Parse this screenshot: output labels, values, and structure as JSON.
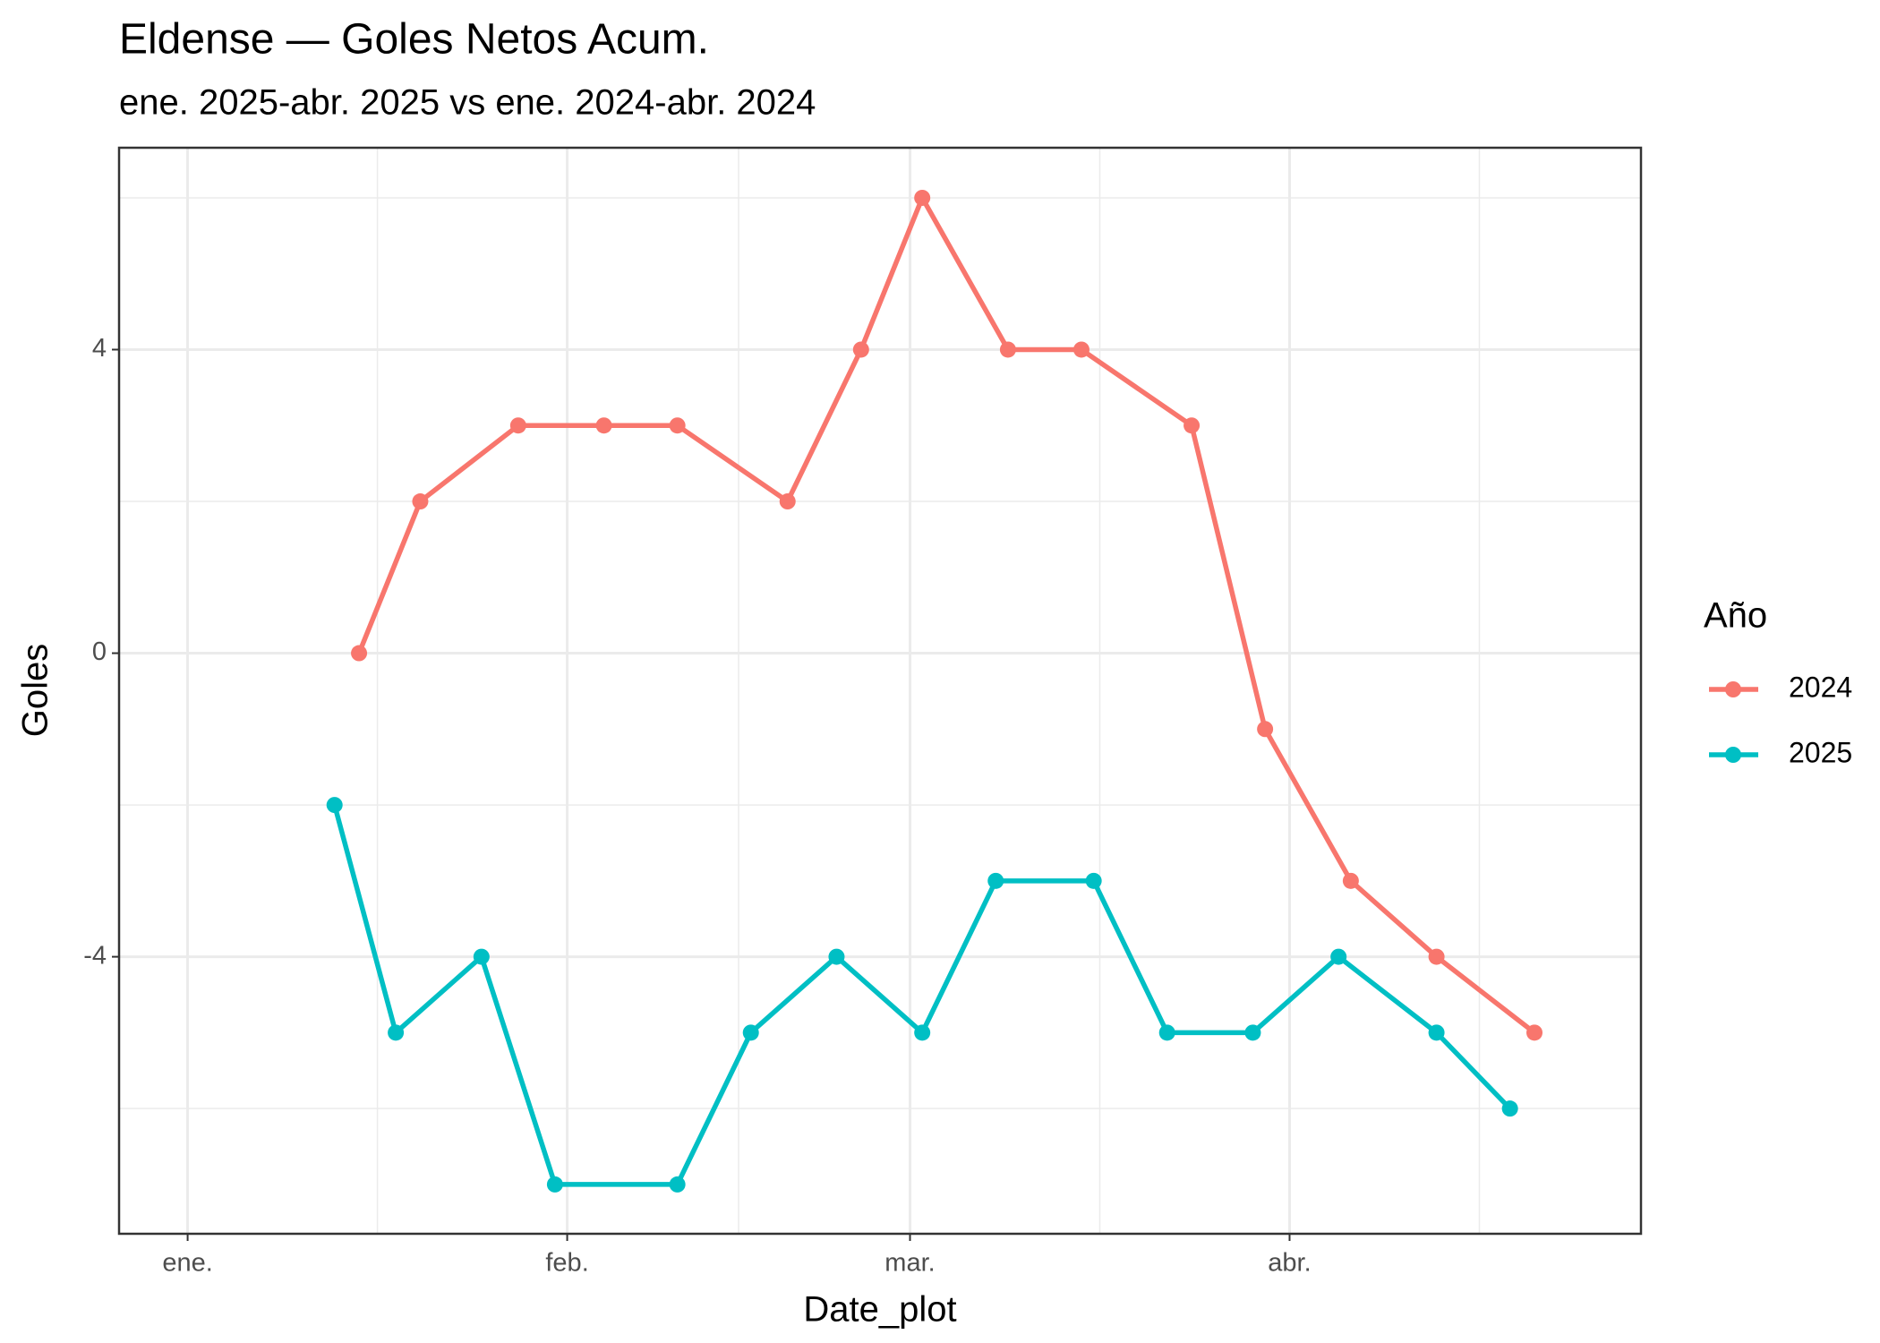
{
  "chart_data": {
    "type": "line",
    "title": "Eldense — Goles Netos Acum.",
    "subtitle": "ene. 2025-abr. 2025 vs ene. 2024-abr. 2024",
    "x_label": "Date_plot",
    "y_label": "Goles",
    "legend_title": "Año",
    "legend_position": "right",
    "xlim": [
      -5.6,
      118.7
    ],
    "ylim": [
      -7.65,
      6.66
    ],
    "xticks": [
      {
        "value": 0,
        "label": "ene."
      },
      {
        "value": 31,
        "label": "feb."
      },
      {
        "value": 59,
        "label": "mar."
      },
      {
        "value": 90,
        "label": "abr."
      }
    ],
    "xminor": [
      15.5,
      45,
      74.5,
      105.5
    ],
    "yticks": [
      -4,
      0,
      4
    ],
    "yminor": [
      -6,
      -2,
      2,
      6
    ],
    "grid": true,
    "series": [
      {
        "name": "2024",
        "color": "#F8766D",
        "x": [
          14,
          19,
          27,
          34,
          40,
          49,
          55,
          60,
          67,
          73,
          82,
          88,
          95,
          102,
          110
        ],
        "values": [
          0,
          2,
          3,
          3,
          3,
          2,
          4,
          6,
          4,
          4,
          3,
          -1,
          -3,
          -4,
          -5
        ]
      },
      {
        "name": "2025",
        "color": "#00BFC4",
        "x": [
          12,
          17,
          24,
          30,
          40,
          46,
          53,
          60,
          66,
          74,
          80,
          87,
          94,
          102,
          108
        ],
        "values": [
          -2,
          -5,
          -4,
          -7,
          -7,
          -5,
          -4,
          -5,
          -3,
          -3,
          -5,
          -5,
          -4,
          -5,
          -6
        ]
      }
    ]
  }
}
